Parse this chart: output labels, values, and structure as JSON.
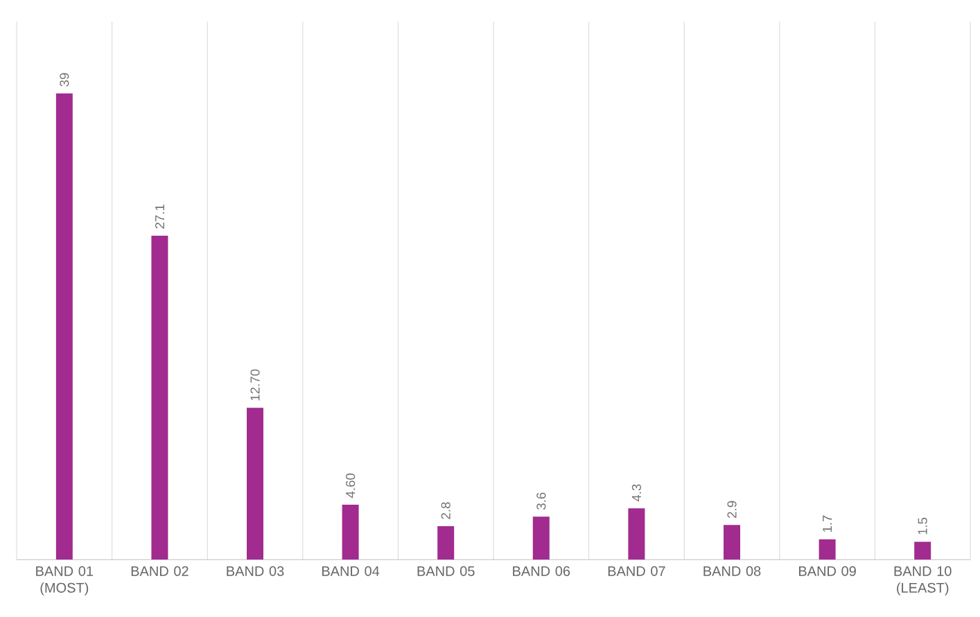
{
  "chart_data": {
    "type": "bar",
    "categories": [
      "BAND 01 (MOST)",
      "BAND 02",
      "BAND 03",
      "BAND 04",
      "BAND 05",
      "BAND 06",
      "BAND 07",
      "BAND 08",
      "BAND 09",
      "BAND 10 (LEAST)"
    ],
    "values": [
      39,
      27.1,
      12.7,
      4.6,
      2.8,
      3.6,
      4.3,
      2.9,
      1.7,
      1.5
    ],
    "value_labels": [
      "39",
      "27.1",
      "12.70",
      "4.60",
      "2.8",
      "3.6",
      "4.3",
      "2.9",
      "1.7",
      "1.5"
    ],
    "color": "#a12b8f",
    "ylim": [
      0,
      45
    ],
    "grid": "x",
    "tick_labels": "x"
  }
}
